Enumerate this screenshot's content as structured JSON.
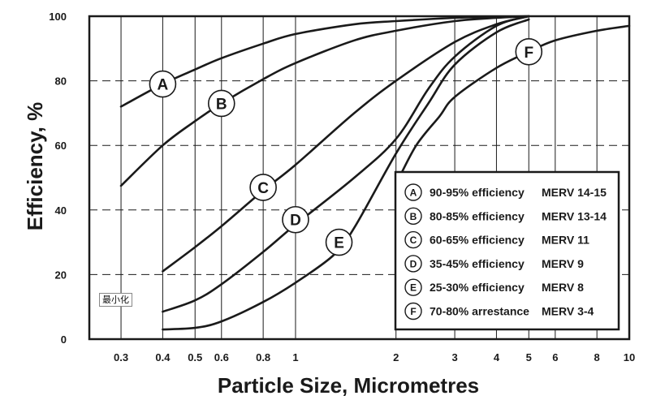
{
  "chart_data": {
    "type": "line",
    "xlabel": "Particle Size, Micrometres",
    "ylabel": "Efficiency, %",
    "x_scale": "log",
    "xlim": [
      0.3,
      10
    ],
    "ylim": [
      0,
      100
    ],
    "x_ticks": [
      0.3,
      0.4,
      0.5,
      0.6,
      0.8,
      1,
      2,
      3,
      4,
      5,
      6,
      8,
      10
    ],
    "x_tick_labels": [
      "0.3",
      "0.4",
      "0.5",
      "0.6",
      "0.8",
      "1",
      "2",
      "3",
      "4",
      "5",
      "6",
      "8",
      "10"
    ],
    "y_ticks": [
      0,
      20,
      40,
      60,
      80,
      100
    ],
    "y_tick_labels": [
      "0",
      "20",
      "40",
      "60",
      "80",
      "100"
    ],
    "grid": true,
    "legend_position": "bottom-right",
    "series": [
      {
        "marker": "A",
        "legend_text": "90-95% efficiency",
        "merv": "MERV 14-15",
        "x": [
          0.3,
          0.4,
          0.5,
          0.6,
          0.8,
          1,
          1.5,
          2,
          3,
          4,
          5
        ],
        "y": [
          72,
          79,
          83.5,
          87,
          91.5,
          94.5,
          97.5,
          98.5,
          99.5,
          99.8,
          100
        ],
        "label_at": [
          0.4,
          79
        ]
      },
      {
        "marker": "B",
        "legend_text": "80-85% efficiency",
        "merv": "MERV 13-14",
        "x": [
          0.3,
          0.4,
          0.5,
          0.6,
          0.8,
          1,
          1.5,
          2,
          3,
          4,
          5
        ],
        "y": [
          47.5,
          60,
          67.5,
          73,
          80.5,
          85.5,
          92.5,
          95.5,
          98.5,
          99.5,
          100
        ],
        "label_at": [
          0.6,
          73
        ]
      },
      {
        "marker": "C",
        "legend_text": "60-65% efficiency",
        "merv": "MERV 11",
        "x": [
          0.4,
          0.5,
          0.6,
          0.8,
          1,
          1.5,
          2,
          3,
          4,
          5
        ],
        "y": [
          21,
          28.5,
          35,
          46,
          54,
          70,
          80,
          92,
          97.5,
          100
        ],
        "label_at": [
          0.8,
          47
        ]
      },
      {
        "marker": "D",
        "legend_text": "35-45% efficiency",
        "merv": "MERV 9",
        "x": [
          0.4,
          0.5,
          0.6,
          0.8,
          1,
          1.5,
          2,
          2.5,
          3,
          4,
          5
        ],
        "y": [
          8.5,
          12,
          17,
          27,
          35.5,
          50,
          62,
          77.5,
          87.5,
          97,
          100
        ],
        "label_at": [
          1,
          37
        ]
      },
      {
        "marker": "E",
        "legend_text": "25-30% efficiency",
        "merv": "MERV 8",
        "x": [
          0.4,
          0.5,
          0.6,
          0.8,
          1,
          1.3,
          1.5,
          2,
          2.5,
          3,
          4,
          5
        ],
        "y": [
          3,
          3.5,
          5.5,
          11.5,
          17.5,
          26,
          34.5,
          57.5,
          73,
          85,
          95,
          99
        ],
        "label_at": [
          1.35,
          30
        ]
      },
      {
        "marker": "F",
        "legend_text": "70-80% arrestance",
        "merv": "MERV 3-4",
        "x": [
          2,
          2.3,
          2.7,
          3,
          4,
          5,
          6,
          8,
          10
        ],
        "y": [
          48,
          60,
          69,
          75,
          84,
          89,
          92.5,
          95.5,
          97
        ],
        "label_at": [
          5,
          89
        ]
      }
    ]
  },
  "overlay_label": "最小化"
}
